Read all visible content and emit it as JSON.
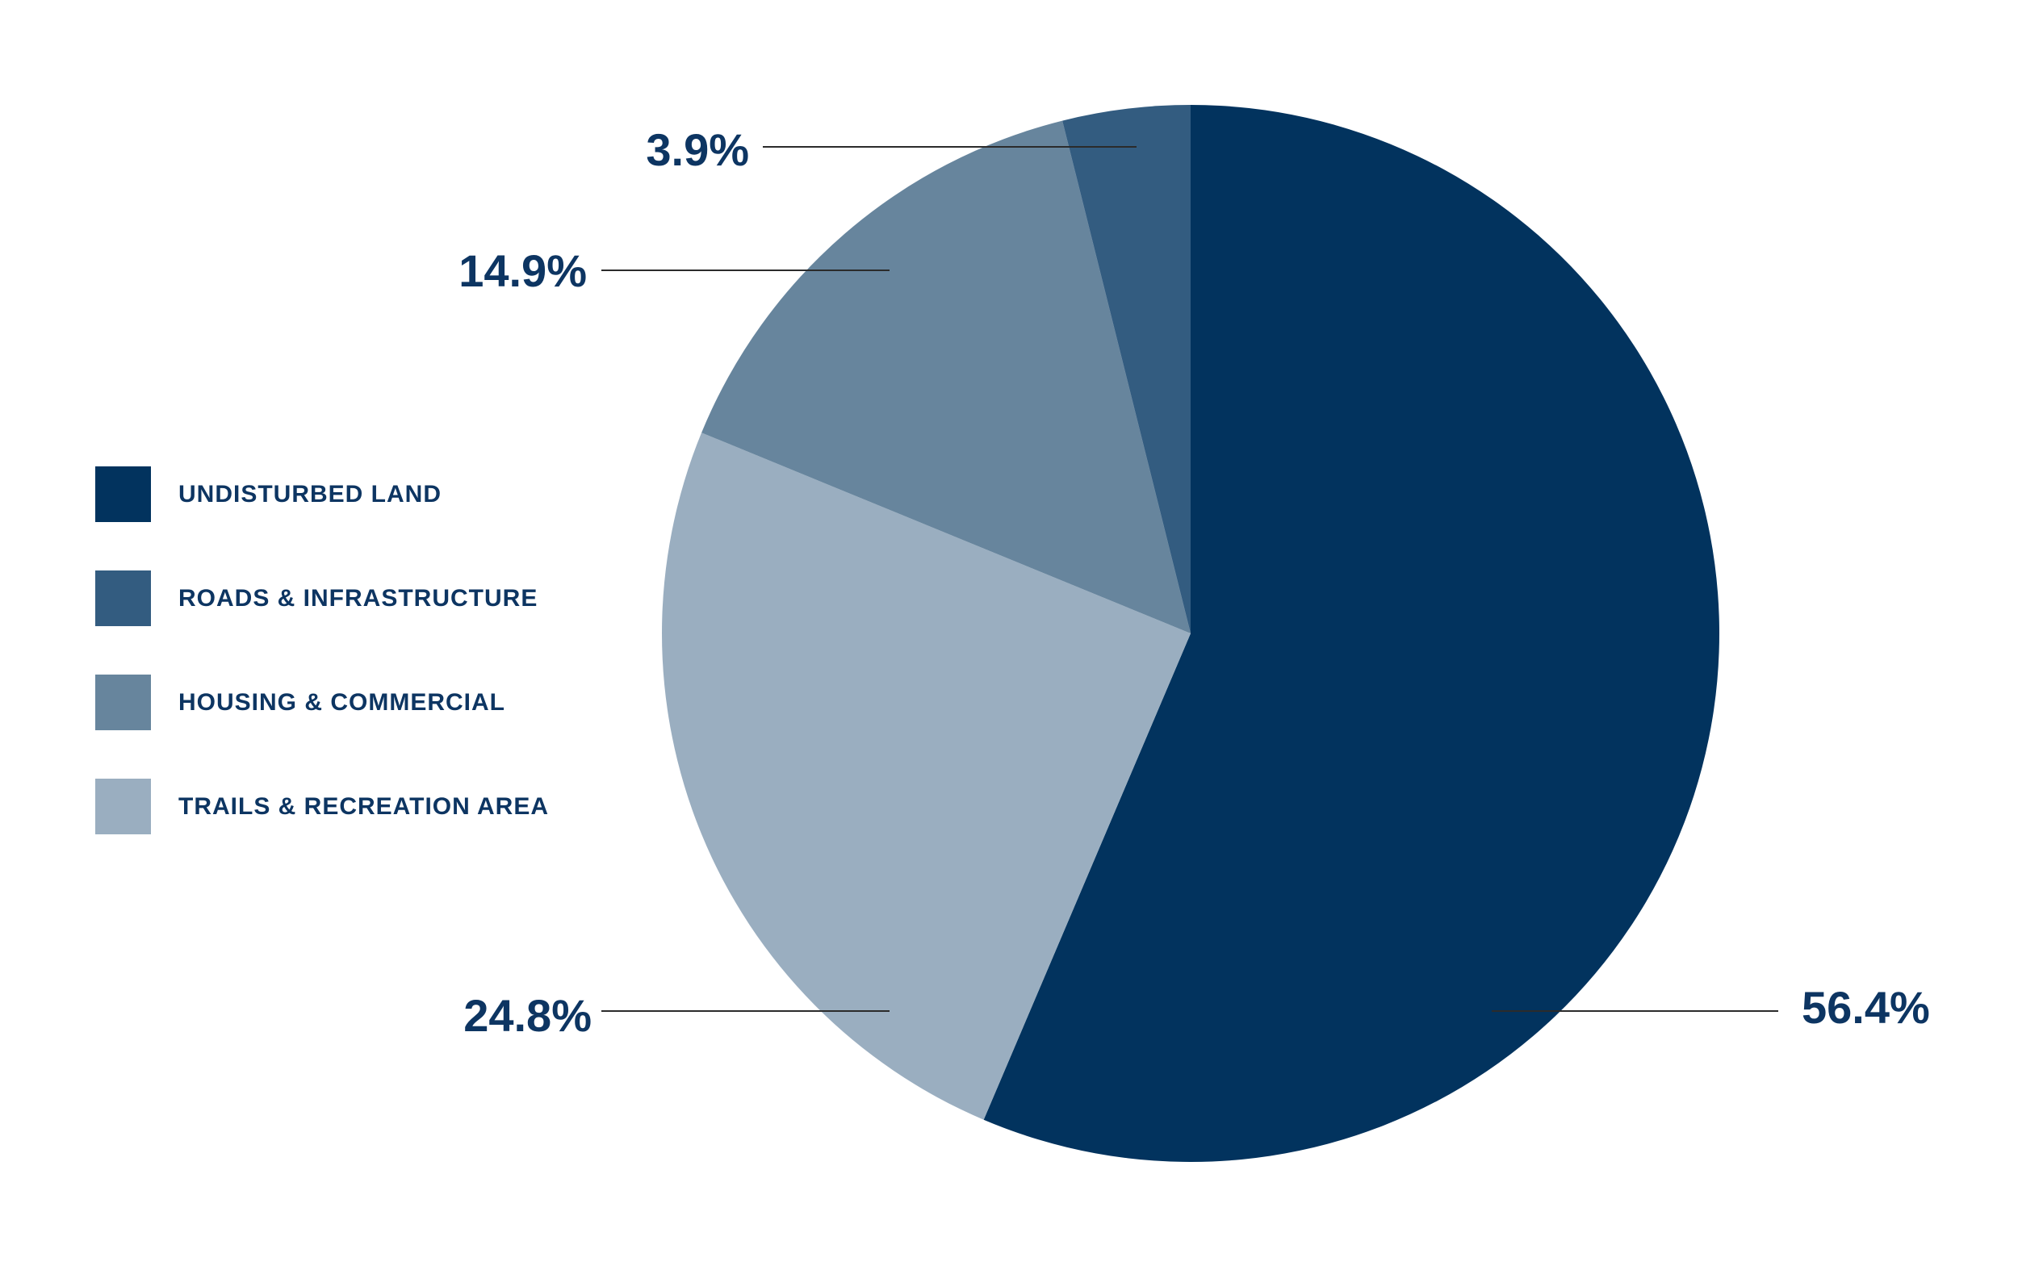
{
  "chart_data": {
    "type": "pie",
    "slices": [
      {
        "label": "UNDISTURBED LAND",
        "value": 56.4,
        "value_label": "56.4%",
        "color": "#02335e"
      },
      {
        "label": "TRAILS & RECREATION AREA",
        "value": 24.8,
        "value_label": "24.8%",
        "color": "#9aaec0"
      },
      {
        "label": "HOUSING & COMMERCIAL",
        "value": 14.9,
        "value_label": "14.9%",
        "color": "#67859d"
      },
      {
        "label": "ROADS & INFRASTRUCTURE",
        "value": 3.9,
        "value_label": "3.9%",
        "color": "#335c80"
      }
    ],
    "legend_order": [
      "UNDISTURBED LAND",
      "ROADS & INFRASTRUCTURE",
      "HOUSING & COMMERCIAL",
      "TRAILS & RECREATION AREA"
    ],
    "legend_position": "left",
    "start_angle_deg": 0,
    "direction": "clockwise",
    "label_color": "#0d3562"
  }
}
